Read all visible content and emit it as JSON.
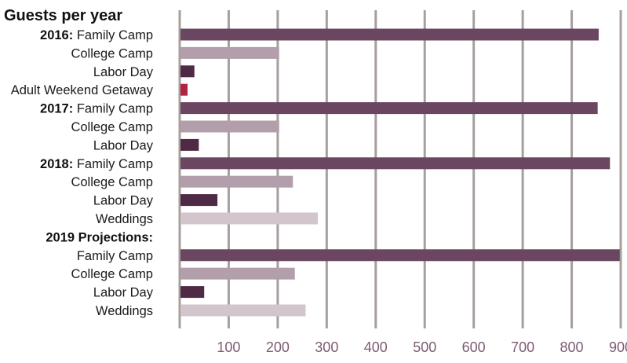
{
  "chart_data": {
    "type": "bar",
    "orientation": "horizontal",
    "title": "Guests per year",
    "xlim": [
      0,
      900
    ],
    "x_ticks": [
      100,
      200,
      300,
      400,
      500,
      600,
      700,
      800,
      900
    ],
    "grid": true,
    "rows": [
      {
        "group": "2016:",
        "label": "Family Camp",
        "value": 855,
        "color": "#6b4660"
      },
      {
        "group": "",
        "label": "College Camp",
        "value": 203,
        "color": "#b39fab"
      },
      {
        "group": "",
        "label": "Labor Day",
        "value": 30,
        "color": "#4f2a44"
      },
      {
        "group": "",
        "label": "Adult Weekend Getaway",
        "value": 16,
        "color": "#b0243f"
      },
      {
        "group": "2017:",
        "label": "Family Camp",
        "value": 853,
        "color": "#6b4660"
      },
      {
        "group": "",
        "label": "College Camp",
        "value": 203,
        "color": "#b39fab"
      },
      {
        "group": "",
        "label": "Labor Day",
        "value": 39,
        "color": "#4f2a44"
      },
      {
        "group": "2018:",
        "label": "Family Camp",
        "value": 878,
        "color": "#6b4660"
      },
      {
        "group": "",
        "label": "College Camp",
        "value": 231,
        "color": "#b39fab"
      },
      {
        "group": "",
        "label": "Labor Day",
        "value": 77,
        "color": "#4f2a44"
      },
      {
        "group": "",
        "label": "Weddings",
        "value": 282,
        "color": "#d3c5cc"
      },
      {
        "group": "2019 Projections:",
        "label": "",
        "value": null,
        "color": ""
      },
      {
        "group": "",
        "label": "Family Camp",
        "value": 898,
        "color": "#6b4660"
      },
      {
        "group": "",
        "label": "College Camp",
        "value": 235,
        "color": "#b39fab"
      },
      {
        "group": "",
        "label": "Labor Day",
        "value": 50,
        "color": "#4f2a44"
      },
      {
        "group": "",
        "label": "Weddings",
        "value": 257,
        "color": "#d3c5cc"
      }
    ],
    "grid_color": "#a79f9c",
    "tick_color": "#7d5b74"
  }
}
